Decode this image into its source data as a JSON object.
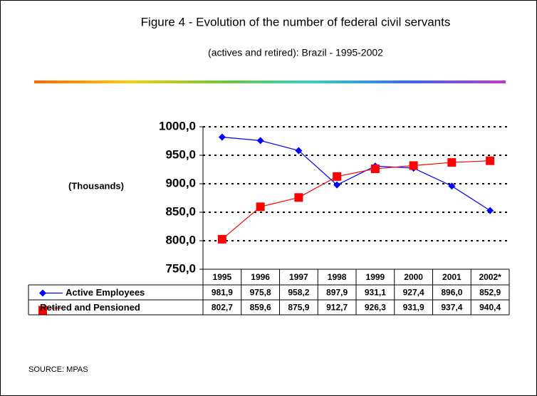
{
  "chart_data": {
    "type": "line",
    "title": "Figure 4 - Evolution of the number of federal civil servants",
    "subtitle": "(actives and retired): Brazil - 1995-2002",
    "y_label": "(Thousands)",
    "source": "SOURCE: MPAS",
    "categories": [
      "1995",
      "1996",
      "1997",
      "1998",
      "1999",
      "2000",
      "2001",
      "2002*"
    ],
    "series": [
      {
        "name": "Active Employees",
        "color": "#0000ff",
        "marker": "diamond",
        "values": [
          981.9,
          975.8,
          958.2,
          897.9,
          931.1,
          927.4,
          896.0,
          852.9
        ],
        "value_labels": [
          "981,9",
          "975,8",
          "958,2",
          "897,9",
          "931,1",
          "927,4",
          "896,0",
          "852,9"
        ]
      },
      {
        "name": "Retired and Pensioned",
        "color": "#ff0000",
        "marker": "square",
        "values": [
          802.7,
          859.6,
          875.9,
          912.7,
          926.3,
          931.9,
          937.4,
          940.4
        ],
        "value_labels": [
          "802,7",
          "859,6",
          "875,9",
          "912,7",
          "926,3",
          "931,9",
          "937,4",
          "940,4"
        ]
      }
    ],
    "ylim": [
      750,
      1000
    ],
    "yticks": [
      {
        "value": 750,
        "label": "750,0"
      },
      {
        "value": 800,
        "label": "800,0"
      },
      {
        "value": 850,
        "label": "850,0"
      },
      {
        "value": 900,
        "label": "900,0"
      },
      {
        "value": 950,
        "label": "950,0"
      },
      {
        "value": 1000,
        "label": "1000,0"
      }
    ],
    "grid": true
  }
}
